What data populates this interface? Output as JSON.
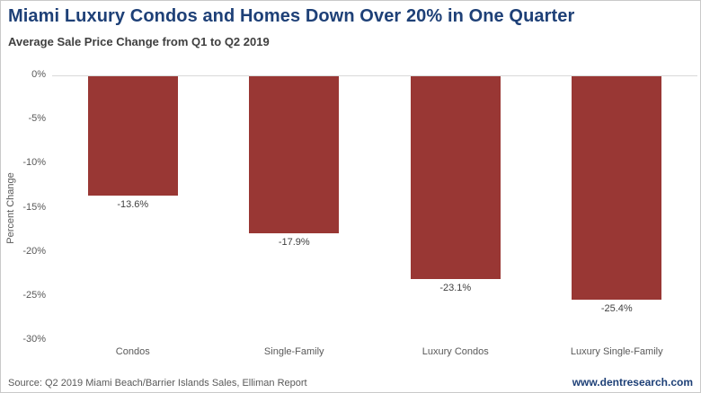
{
  "header": {
    "title": "Miami Luxury Condos and Homes Down Over 20% in One Quarter",
    "subtitle": "Average Sale Price Change from Q1 to Q2 2019"
  },
  "footer": {
    "source": "Source: Q2 2019 Miami Beach/Barrier Islands Sales, Elliman Report",
    "website": "www.dentresearch.com"
  },
  "colors": {
    "bar": "#993734",
    "title": "#1E4077",
    "subtitle": "#3F3F3F",
    "axis_text": "#595959",
    "value_text": "#404040",
    "gridline": "#D9D9D9"
  },
  "chart_data": {
    "type": "bar",
    "title": "Miami Luxury Condos and Homes Down Over 20% in One Quarter",
    "subtitle": "Average Sale Price Change from Q1 to Q2 2019",
    "categories": [
      "Condos",
      "Single-Family",
      "Luxury Condos",
      "Luxury Single-Family"
    ],
    "values": [
      -13.6,
      -17.9,
      -23.1,
      -25.4
    ],
    "value_labels": [
      "-13.6%",
      "-17.9%",
      "-23.1%",
      "-25.4%"
    ],
    "xlabel": "",
    "ylabel": "Percent Change",
    "ylim": [
      -30,
      0
    ],
    "yticks": [
      "0%",
      "-5%",
      "-10%",
      "-15%",
      "-20%",
      "-25%",
      "-30%"
    ],
    "grid": false,
    "legend": false,
    "bar_color": "#993734"
  }
}
